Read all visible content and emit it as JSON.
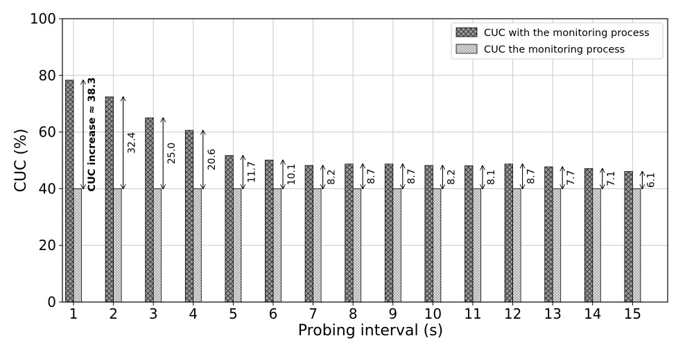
{
  "chart_data": {
    "type": "bar",
    "title": "",
    "xlabel": "Probing interval (s)",
    "ylabel": "CUC (%)",
    "ylim": [
      0,
      100
    ],
    "yticks": [
      0,
      20,
      40,
      60,
      80,
      100
    ],
    "grid": true,
    "legend_position": "top-right",
    "categories": [
      "1",
      "2",
      "3",
      "4",
      "5",
      "6",
      "7",
      "8",
      "9",
      "10",
      "11",
      "12",
      "13",
      "14",
      "15"
    ],
    "series": [
      {
        "name": "CUC with the monitoring process",
        "pattern": "crosshatch",
        "color": "#9a9a9a",
        "values": [
          78.3,
          72.4,
          65.0,
          60.6,
          51.7,
          50.1,
          48.2,
          48.7,
          48.7,
          48.2,
          48.1,
          48.7,
          47.7,
          47.1,
          46.1
        ]
      },
      {
        "name": "CUC the monitoring process",
        "pattern": "dots",
        "color": "#dcdcdc",
        "values": [
          40,
          40,
          40,
          40,
          40,
          40,
          40,
          40,
          40,
          40,
          40,
          40,
          40,
          40,
          40
        ]
      }
    ],
    "annotations": [
      "CUC increase ≈ 38.3",
      "32.4",
      "25.0",
      "20.6",
      "11.7",
      "10.1",
      "8.2",
      "8.7",
      "8.7",
      "8.2",
      "8.1",
      "8.7",
      "7.7",
      "7.1",
      "6.1"
    ]
  }
}
